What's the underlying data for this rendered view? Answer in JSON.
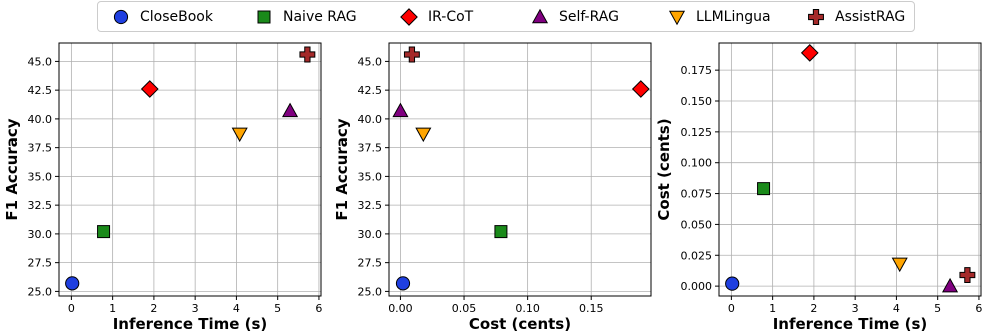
{
  "legend": {
    "items": [
      {
        "label": "CloseBook",
        "marker": "circle",
        "color": "#1f3fe0"
      },
      {
        "label": "Naive RAG",
        "marker": "square",
        "color": "#1a8a1a"
      },
      {
        "label": "IR-CoT",
        "marker": "diamond",
        "color": "#ff0000"
      },
      {
        "label": "Self-RAG",
        "marker": "triangle-up",
        "color": "#800080"
      },
      {
        "label": "LLMLingua",
        "marker": "triangle-down",
        "color": "#ffa500"
      },
      {
        "label": "AssistRAG",
        "marker": "plus",
        "color": "#a52a2a"
      }
    ]
  },
  "chart_data": [
    {
      "type": "scatter",
      "xlabel": "Inference Time (s)",
      "ylabel": "F1 Accuracy",
      "xlim": [
        -0.3,
        6.05
      ],
      "ylim": [
        24.6,
        46.6
      ],
      "xticks": [
        0,
        1,
        2,
        3,
        4,
        5,
        6
      ],
      "xtick_labels": [
        "0",
        "1",
        "2",
        "3",
        "4",
        "5",
        "6"
      ],
      "yticks": [
        25.0,
        27.5,
        30.0,
        32.5,
        35.0,
        37.5,
        40.0,
        42.5,
        45.0
      ],
      "ytick_labels": [
        "25.0",
        "27.5",
        "30.0",
        "32.5",
        "35.0",
        "37.5",
        "40.0",
        "42.5",
        "45.0"
      ],
      "grid": true,
      "points": [
        {
          "series": "CloseBook",
          "x": 0.02,
          "y": 25.7
        },
        {
          "series": "Naive RAG",
          "x": 0.78,
          "y": 30.2
        },
        {
          "series": "IR-CoT",
          "x": 1.9,
          "y": 42.6
        },
        {
          "series": "Self-RAG",
          "x": 5.3,
          "y": 40.7
        },
        {
          "series": "LLMLingua",
          "x": 4.08,
          "y": 38.7
        },
        {
          "series": "AssistRAG",
          "x": 5.72,
          "y": 45.6
        }
      ]
    },
    {
      "type": "scatter",
      "xlabel": "Cost (cents)",
      "ylabel": "F1 Accuracy",
      "xlim": [
        -0.009,
        0.197
      ],
      "ylim": [
        24.6,
        46.6
      ],
      "xticks": [
        0.0,
        0.05,
        0.1,
        0.15
      ],
      "xtick_labels": [
        "0.00",
        "0.05",
        "0.10",
        "0.15"
      ],
      "yticks": [
        25.0,
        27.5,
        30.0,
        32.5,
        35.0,
        37.5,
        40.0,
        42.5,
        45.0
      ],
      "ytick_labels": [
        "25.0",
        "27.5",
        "30.0",
        "32.5",
        "35.0",
        "37.5",
        "40.0",
        "42.5",
        "45.0"
      ],
      "grid": true,
      "points": [
        {
          "series": "CloseBook",
          "x": 0.002,
          "y": 25.7
        },
        {
          "series": "Naive RAG",
          "x": 0.079,
          "y": 30.2
        },
        {
          "series": "IR-CoT",
          "x": 0.189,
          "y": 42.6
        },
        {
          "series": "Self-RAG",
          "x": 0.0,
          "y": 40.7
        },
        {
          "series": "LLMLingua",
          "x": 0.018,
          "y": 38.7
        },
        {
          "series": "AssistRAG",
          "x": 0.009,
          "y": 45.6
        }
      ]
    },
    {
      "type": "scatter",
      "xlabel": "Inference Time (s)",
      "ylabel": "Cost (cents)",
      "xlim": [
        -0.3,
        6.05
      ],
      "ylim": [
        -0.008,
        0.197
      ],
      "xticks": [
        0,
        1,
        2,
        3,
        4,
        5,
        6
      ],
      "xtick_labels": [
        "0",
        "1",
        "2",
        "3",
        "4",
        "5",
        "6"
      ],
      "yticks": [
        0.0,
        0.025,
        0.05,
        0.075,
        0.1,
        0.125,
        0.15,
        0.175
      ],
      "ytick_labels": [
        "0.000",
        "0.025",
        "0.050",
        "0.075",
        "0.100",
        "0.125",
        "0.150",
        "0.175"
      ],
      "grid": true,
      "points": [
        {
          "series": "CloseBook",
          "x": 0.02,
          "y": 0.002
        },
        {
          "series": "Naive RAG",
          "x": 0.78,
          "y": 0.079
        },
        {
          "series": "IR-CoT",
          "x": 1.9,
          "y": 0.189
        },
        {
          "series": "Self-RAG",
          "x": 5.3,
          "y": 0.0
        },
        {
          "series": "LLMLingua",
          "x": 4.08,
          "y": 0.018
        },
        {
          "series": "AssistRAG",
          "x": 5.72,
          "y": 0.009
        }
      ]
    }
  ]
}
